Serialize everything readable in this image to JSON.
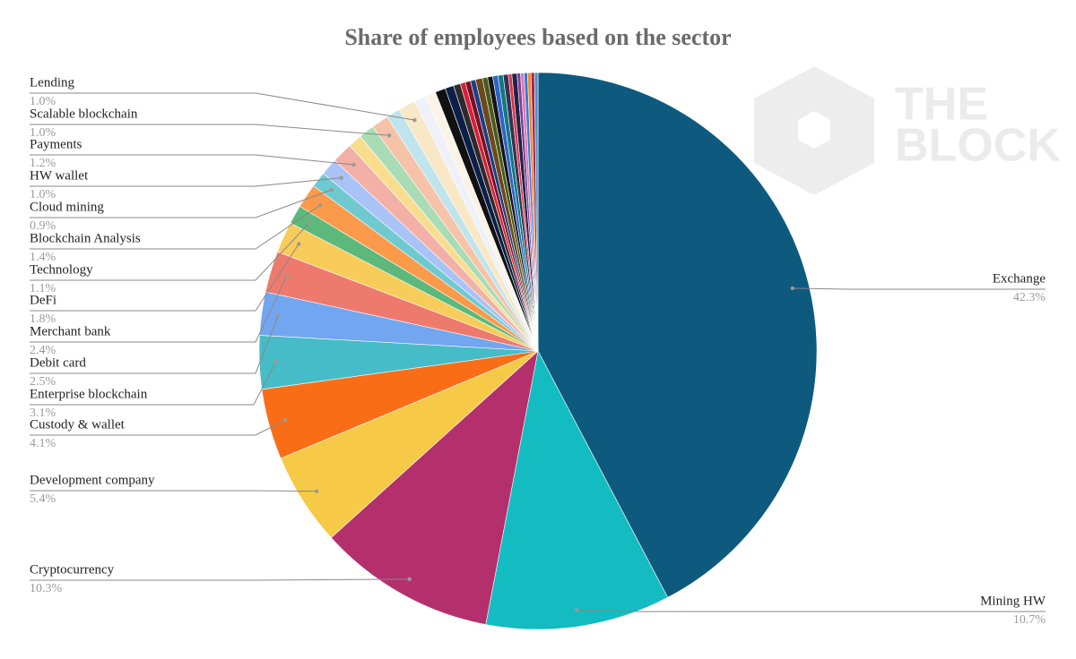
{
  "chart_data": {
    "type": "pie",
    "title": "Share of employees based on the sector",
    "watermark": [
      "THE",
      "BLOCK"
    ],
    "categories": [
      "Exchange",
      "Mining HW",
      "Cryptocurrency",
      "Development company",
      "Custody & wallet",
      "Enterprise blockchain",
      "Debit card",
      "Merchant bank",
      "DeFi",
      "Technology",
      "Blockchain Analysis",
      "Cloud mining",
      "HW wallet",
      "Payments",
      null,
      null,
      "Scalable blockchain",
      null,
      "Lending",
      null,
      null,
      null,
      null,
      null,
      null,
      null,
      null,
      null,
      null,
      null,
      null,
      null,
      null,
      null,
      null,
      null,
      null,
      null,
      null,
      null,
      null
    ],
    "values": [
      42.3,
      10.7,
      10.3,
      5.4,
      4.1,
      3.1,
      2.5,
      2.4,
      1.8,
      1.1,
      1.4,
      0.9,
      1.0,
      1.2,
      0.8,
      0.9,
      1.0,
      0.8,
      1.0,
      0.7,
      0.6,
      0.6,
      0.5,
      0.4,
      0.3,
      0.3,
      0.3,
      0.4,
      0.3,
      0.3,
      0.3,
      0.3,
      0.3,
      0.2,
      0.3,
      0.2,
      0.2,
      0.2,
      0.2,
      0.2,
      0.2
    ],
    "value_labels": [
      "42.3%",
      "10.7%",
      "10.3%",
      "5.4%",
      "4.1%",
      "3.1%",
      "2.5%",
      "2.4%",
      "1.8%",
      "1.1%",
      "1.4%",
      "0.9%",
      "1.0%",
      "1.2%",
      null,
      null,
      "1.0%",
      null,
      "1.0%",
      null,
      null,
      null,
      null,
      null,
      null,
      null,
      null,
      null,
      null,
      null,
      null,
      null,
      null,
      null,
      null,
      null,
      null,
      null,
      null,
      null,
      null
    ],
    "colors": [
      "#0e5a7e",
      "#12bcc0",
      "#b4306d",
      "#f6c946",
      "#fa6d17",
      "#45bcc7",
      "#72a6f0",
      "#ee7a6e",
      "#f8cc5a",
      "#5cb97b",
      "#fb9a4b",
      "#6fcad0",
      "#a9c3f6",
      "#f3b0a6",
      "#f9dd8f",
      "#a9dcb5",
      "#f6c2a8",
      "#bfe4ec",
      "#f8e8c6",
      "#eef1f8",
      "#fbf3e6",
      "#111111",
      "#0b1f4a",
      "#2b2b2b",
      "#d8203a",
      "#7a1020",
      "#1c3f8a",
      "#6b4a1d",
      "#4b5a1a",
      "#151515",
      "#2e63c9",
      "#137a82",
      "#333355",
      "#e0304a",
      "#222244",
      "#7a3fa0",
      "#e07aa8",
      "#3a78d8",
      "#f08a30",
      "#9a2a50",
      "#5a8ac8"
    ]
  }
}
